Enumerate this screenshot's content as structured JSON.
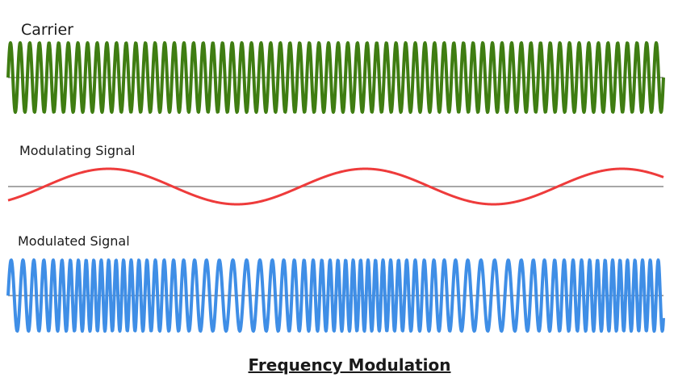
{
  "labels": {
    "carrier": "Carrier",
    "modulating": "Modulating Signal",
    "modulated": "Modulated Signal"
  },
  "caption": "Frequency Modulation",
  "colors": {
    "carrier": "#3f7d12",
    "modulating": "#ee3b3b",
    "modulated": "#3f8ee6",
    "baseline": "#8a8a8a"
  }
}
